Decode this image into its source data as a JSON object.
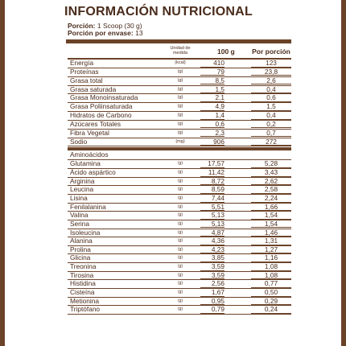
{
  "title": "INFORMACIÓN NUTRICIONAL",
  "portion_label": "Porción:",
  "portion_value": "1 Scoop (30 g)",
  "portions_label": "Porción por envase:",
  "portions_value": "13",
  "headers": {
    "unit": "Unidad de medida",
    "per100": "100 g",
    "per_portion": "Por porción"
  },
  "nutrients": [
    {
      "name": "Energía",
      "unit": "(kcal)",
      "v100": "410",
      "vpor": "123"
    },
    {
      "name": "Proteínas",
      "unit": "(g)",
      "v100": "79",
      "vpor": "23,8"
    },
    {
      "name": "Grasa total",
      "unit": "(g)",
      "v100": "8,5",
      "vpor": "2,6"
    },
    {
      "name": "Grasa saturada",
      "unit": "(g)",
      "v100": "1,5",
      "vpor": "0,4"
    },
    {
      "name": "Grasa Monoinsaturada",
      "unit": "(g)",
      "v100": "2,1",
      "vpor": "0,6"
    },
    {
      "name": "Grasa Poliinsaturada",
      "unit": "(g)",
      "v100": "4,9",
      "vpor": "1,5"
    },
    {
      "name": "Hidratos de Carbono",
      "unit": "(g)",
      "v100": "1,4",
      "vpor": "0,4"
    },
    {
      "name": "Azúcares Totales",
      "unit": "(g)",
      "v100": "0,6",
      "vpor": "0,2"
    },
    {
      "name": "Fibra Vegetal",
      "unit": "(g)",
      "v100": "2,3",
      "vpor": "0,7"
    },
    {
      "name": "Sodio",
      "unit": "(mg)",
      "v100": "906",
      "vpor": "272"
    }
  ],
  "amino_title": "Aminoácidos",
  "aminos": [
    {
      "name": "Glutamina",
      "unit": "(g)",
      "v100": "17,57",
      "vpor": "5,28"
    },
    {
      "name": "Ácido aspártico",
      "unit": "(g)",
      "v100": "11,42",
      "vpor": "3,43"
    },
    {
      "name": "Arginina",
      "unit": "(g)",
      "v100": "8,72",
      "vpor": "2,62"
    },
    {
      "name": "Leucina",
      "unit": "(g)",
      "v100": "8,59",
      "vpor": "2,58"
    },
    {
      "name": "Lisina",
      "unit": "(g)",
      "v100": "7,44",
      "vpor": "2,24"
    },
    {
      "name": "Fenilalanina",
      "unit": "(g)",
      "v100": "5,51",
      "vpor": "1,66"
    },
    {
      "name": "Valina",
      "unit": "(g)",
      "v100": "5,13",
      "vpor": "1,54"
    },
    {
      "name": "Serina",
      "unit": "(g)",
      "v100": "5,13",
      "vpor": "1,54"
    },
    {
      "name": "Isoleucina",
      "unit": "(g)",
      "v100": "4,87",
      "vpor": "1,46"
    },
    {
      "name": "Alanina",
      "unit": "(g)",
      "v100": "4,36",
      "vpor": "1,31"
    },
    {
      "name": "Prolina",
      "unit": "(g)",
      "v100": "4,23",
      "vpor": "1,27"
    },
    {
      "name": "Glicina",
      "unit": "(g)",
      "v100": "3,85",
      "vpor": "1,16"
    },
    {
      "name": "Treonina",
      "unit": "(g)",
      "v100": "3,59",
      "vpor": "1,08"
    },
    {
      "name": "Tirosina",
      "unit": "(g)",
      "v100": "3,59",
      "vpor": "1,08"
    },
    {
      "name": "Histidina",
      "unit": "(g)",
      "v100": "2,56",
      "vpor": "0,77"
    },
    {
      "name": "Cisteína",
      "unit": "(g)",
      "v100": "1,67",
      "vpor": "0,50"
    },
    {
      "name": "Metionina",
      "unit": "(g)",
      "v100": "0,95",
      "vpor": "0,29"
    },
    {
      "name": "Triptófano",
      "unit": "(g)",
      "v100": "0,79",
      "vpor": "0,24"
    }
  ],
  "colors": {
    "brown": "#6b4329",
    "text": "#4a2c1c"
  }
}
